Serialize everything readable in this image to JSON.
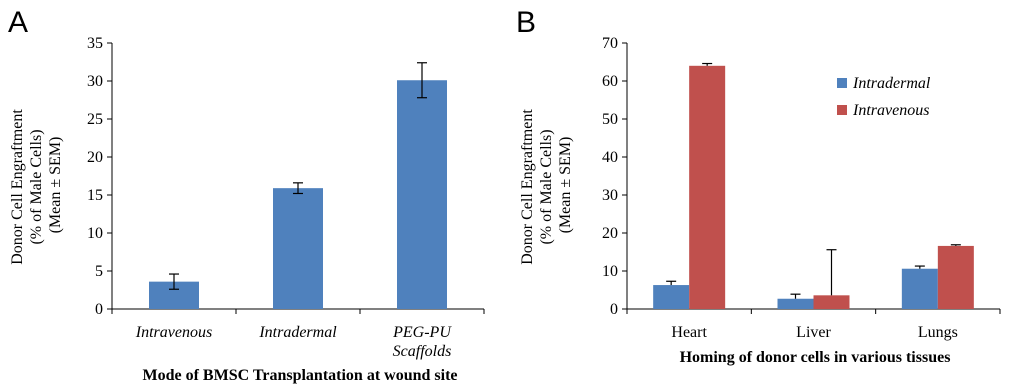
{
  "chart_data": [
    {
      "type": "bar",
      "panel_label": "A",
      "categories": [
        "Intravenous",
        "Intradermal",
        "PEG-PU Scaffolds"
      ],
      "category_lines": [
        [
          "Intravenous"
        ],
        [
          "Intradermal"
        ],
        [
          "PEG-PU",
          "Scaffolds"
        ]
      ],
      "series": [
        {
          "values": [
            3.6,
            15.9,
            30.1
          ],
          "errors": [
            1.0,
            0.7,
            2.3
          ],
          "color": "#4F81BD"
        }
      ],
      "xlabel": "Mode of BMSC Transplantation at wound site",
      "ylabel_lines": [
        "Donor Cell Engraftment",
        "(% of Male Cells)",
        "(Mean ± SEM)"
      ],
      "ylim": [
        0,
        35
      ],
      "yticks": [
        0,
        5,
        10,
        15,
        20,
        25,
        30,
        35
      ],
      "grid": false,
      "legend": "none"
    },
    {
      "type": "bar",
      "panel_label": "B",
      "categories": [
        "Heart",
        "Liver",
        "Lungs"
      ],
      "series": [
        {
          "name": "Intradermal",
          "values": [
            6.3,
            2.7,
            10.6
          ],
          "errors": [
            1.0,
            1.2,
            0.7
          ],
          "color": "#4F81BD"
        },
        {
          "name": "Intravenous",
          "values": [
            64.0,
            3.6,
            16.6
          ],
          "errors": [
            0.6,
            12.0,
            0.3
          ],
          "color": "#C0504D"
        }
      ],
      "xlabel": "Homing of donor cells in various tissues",
      "ylabel_lines": [
        "Donor Cell Engraftment",
        "(% of Male Cells)",
        "(Mean ± SEM)"
      ],
      "ylim": [
        0,
        70
      ],
      "yticks": [
        0,
        10,
        20,
        30,
        40,
        50,
        60,
        70
      ],
      "grid": false,
      "legend": "top-right"
    }
  ]
}
